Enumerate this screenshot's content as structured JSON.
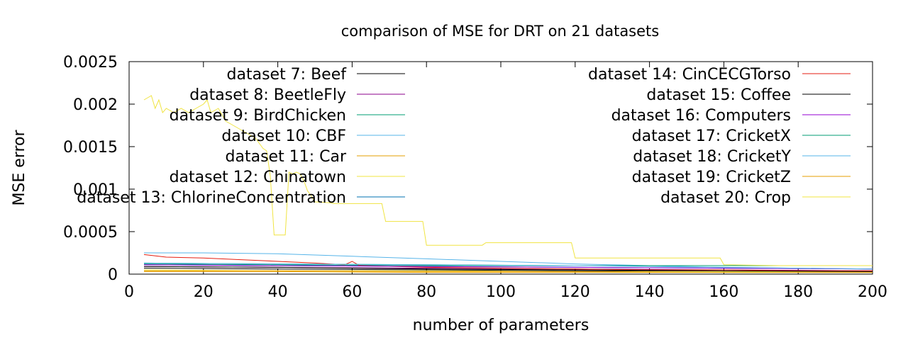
{
  "chart_data": {
    "type": "line",
    "title": "comparison of MSE for DRT on 21 datasets",
    "xlabel": "number of parameters",
    "ylabel": "MSE error",
    "xlim": [
      0,
      200
    ],
    "ylim": [
      0,
      0.0025
    ],
    "xticks": [
      "0",
      "20",
      "40",
      "60",
      "80",
      "100",
      "120",
      "140",
      "160",
      "180",
      "200"
    ],
    "yticks": [
      "0",
      "0.0005",
      "0.001",
      "0.0015",
      "0.002",
      "0.0025"
    ],
    "grid": false,
    "legend_position": "top (two columns)",
    "series": [
      {
        "name": "dataset 7: Beef",
        "color": "#000000",
        "x": [
          4,
          40,
          80,
          120,
          160,
          200
        ],
        "y": [
          7e-05,
          6e-05,
          5e-05,
          4e-05,
          3e-05,
          3e-05
        ]
      },
      {
        "name": "dataset 8: BeetleFly",
        "color": "#8b008b",
        "x": [
          4,
          40,
          80,
          120,
          160,
          200
        ],
        "y": [
          9e-05,
          8e-05,
          7e-05,
          6e-05,
          5e-05,
          4e-05
        ]
      },
      {
        "name": "dataset 9: BirdChicken",
        "color": "#009e73",
        "x": [
          4,
          40,
          80,
          120,
          160,
          200
        ],
        "y": [
          0.00012,
          0.00011,
          0.0001,
          0.0001,
          0.0001,
          0.0001
        ]
      },
      {
        "name": "dataset 10: CBF",
        "color": "#56b4e9",
        "x": [
          4,
          20,
          40,
          60,
          80,
          100,
          120,
          140,
          160,
          180,
          200
        ],
        "y": [
          0.00025,
          0.00025,
          0.00024,
          0.00021,
          0.00018,
          0.00015,
          0.00012,
          0.0001,
          8e-05,
          7e-05,
          6e-05
        ]
      },
      {
        "name": "dataset 11: Car",
        "color": "#e69f00",
        "x": [
          4,
          40,
          80,
          120,
          160,
          200
        ],
        "y": [
          3e-05,
          3e-05,
          2e-05,
          2e-05,
          2e-05,
          2e-05
        ]
      },
      {
        "name": "dataset 12: Chinatown",
        "color": "#f0e442",
        "x": [
          4,
          40,
          80,
          120,
          160,
          200
        ],
        "y": [
          5e-05,
          4e-05,
          4e-05,
          3e-05,
          3e-05,
          3e-05
        ]
      },
      {
        "name": "dataset 13: ChlorineConcentration",
        "color": "#0072b2",
        "x": [
          4,
          40,
          80,
          120,
          160,
          200
        ],
        "y": [
          0.00011,
          0.0001,
          9e-05,
          8e-05,
          7e-05,
          6e-05
        ]
      },
      {
        "name": "dataset 14: CinCECGTorso",
        "color": "#e51e10",
        "x": [
          4,
          10,
          20,
          30,
          40,
          50,
          58,
          60,
          62,
          80,
          100,
          120,
          140,
          160,
          180,
          200
        ],
        "y": [
          0.00023,
          0.0002,
          0.00019,
          0.00017,
          0.00015,
          0.00013,
          0.00011,
          0.00015,
          0.0001,
          8e-05,
          7e-05,
          6e-05,
          5e-05,
          5e-05,
          4e-05,
          4e-05
        ]
      },
      {
        "name": "dataset 15: Coffee",
        "color": "#000000",
        "x": [
          4,
          40,
          80,
          120,
          160,
          200
        ],
        "y": [
          9e-05,
          8e-05,
          6e-05,
          5e-05,
          4e-05,
          3e-05
        ]
      },
      {
        "name": "dataset 16: Computers",
        "color": "#9400d3",
        "x": [
          4,
          40,
          80,
          120,
          160,
          200
        ],
        "y": [
          0.00011,
          0.0001,
          9e-05,
          8e-05,
          7e-05,
          6e-05
        ]
      },
      {
        "name": "dataset 17: CricketX",
        "color": "#009e73",
        "x": [
          4,
          40,
          80,
          120,
          160,
          200
        ],
        "y": [
          0.00013,
          0.00012,
          0.00011,
          0.0001,
          0.0001,
          0.0001
        ]
      },
      {
        "name": "dataset 18: CricketY",
        "color": "#56b4e9",
        "x": [
          4,
          40,
          80,
          120,
          160,
          200
        ],
        "y": [
          0.00013,
          0.00012,
          0.00011,
          0.0001,
          8e-05,
          6e-05
        ]
      },
      {
        "name": "dataset 19: CricketZ",
        "color": "#e69f00",
        "x": [
          4,
          40,
          80,
          120,
          160,
          200
        ],
        "y": [
          4e-05,
          4e-05,
          3e-05,
          3e-05,
          2e-05,
          2e-05
        ]
      },
      {
        "name": "dataset 20: Crop",
        "color": "#f0e442",
        "x": [
          4,
          6,
          7,
          8,
          9,
          10,
          12,
          14,
          16,
          18,
          20,
          21,
          22,
          24,
          26,
          28,
          30,
          32,
          34,
          36,
          37,
          38,
          39,
          40,
          41,
          42,
          43,
          44,
          45,
          46,
          47,
          48,
          49,
          50,
          54,
          55,
          68,
          69,
          79,
          80,
          95,
          96,
          119,
          120,
          159,
          160,
          175,
          200
        ],
        "y": [
          0.00205,
          0.0021,
          0.00195,
          0.00205,
          0.0019,
          0.00195,
          0.0019,
          0.00195,
          0.0019,
          0.00195,
          0.002,
          0.00205,
          0.0019,
          0.00195,
          0.0018,
          0.00175,
          0.0017,
          0.00165,
          0.0016,
          0.00148,
          0.00145,
          0.00115,
          0.00046,
          0.00046,
          0.00046,
          0.00046,
          0.0012,
          0.00118,
          0.0012,
          0.00118,
          0.0011,
          0.00098,
          0.00092,
          0.00085,
          0.00084,
          0.00083,
          0.00083,
          0.00062,
          0.00062,
          0.00034,
          0.00034,
          0.00037,
          0.00037,
          0.00019,
          0.00019,
          0.00011,
          0.0001,
          0.0001
        ]
      }
    ]
  }
}
